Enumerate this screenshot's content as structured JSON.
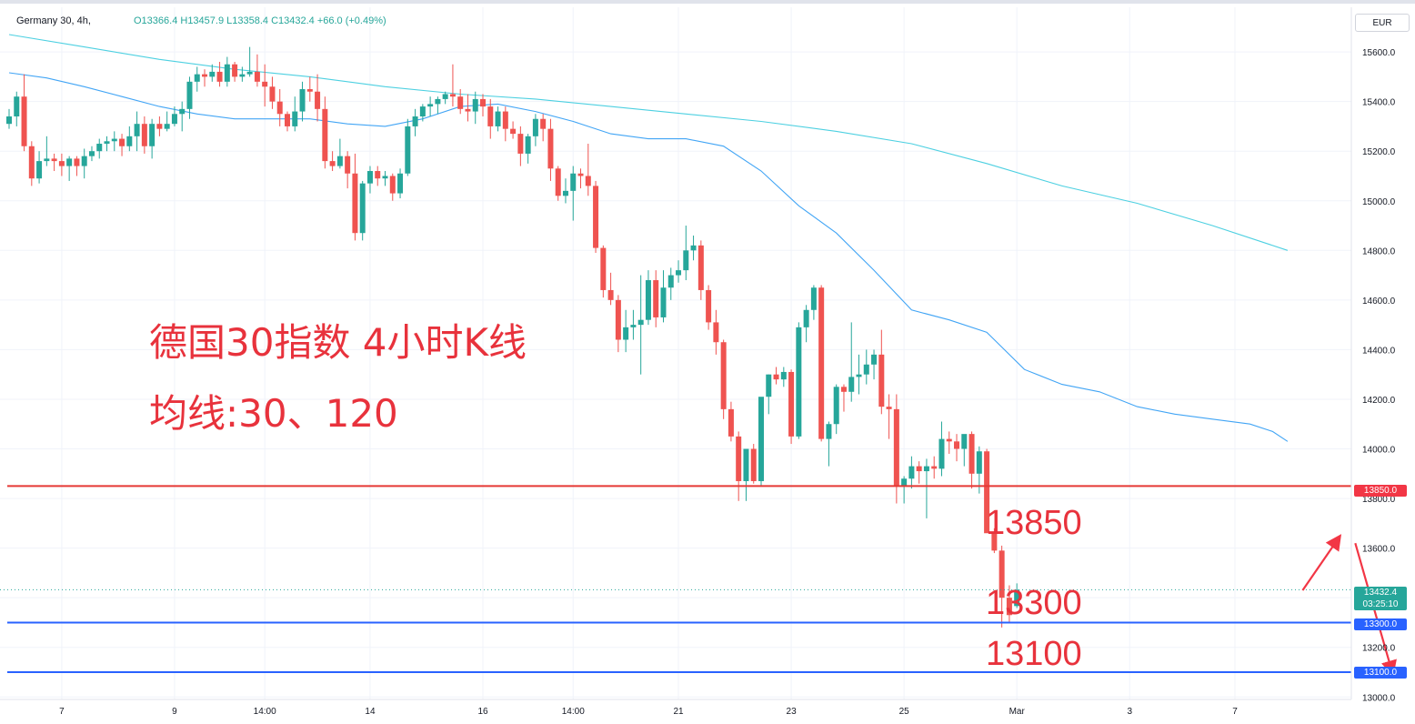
{
  "header": {
    "symbol": "Germany 30, 4h,",
    "ohlc": "O13366.4  H13457.9  L13358.4  C13432.4  +66.0 (+0.49%)"
  },
  "currency": "EUR",
  "annotations": {
    "title": "德国30指数 4小时K线",
    "ma_label": "均线:30、120",
    "level_13850": "13850",
    "level_13300": "13300",
    "level_13100": "13100"
  },
  "price_badges": {
    "res": "13850.0",
    "sup1": "13300.0",
    "sup2": "13100.0",
    "last_price": "13432.4",
    "countdown": "03:25:10"
  },
  "colors": {
    "up": "#26a69a",
    "down": "#ef5350",
    "ma30": "#42a5f5",
    "ma120": "#4dd0e1",
    "resistance": "#e53935",
    "support": "#2962ff",
    "annotation": "#e8323c"
  },
  "chart_data": {
    "type": "candlestick",
    "title": "",
    "y_axis": {
      "ticks": [
        13000,
        13200,
        13400,
        13600,
        13800,
        14000,
        14200,
        14400,
        14600,
        14800,
        15000,
        15200,
        15400,
        15600
      ],
      "tick_labels": [
        "13000.0",
        "13200.0",
        "13400.0",
        "13600.0",
        "13800.0",
        "14000.0",
        "14200.0",
        "14400.0",
        "14600.0",
        "14800.0",
        "15000.0",
        "15200.0",
        "15400.0",
        "15600.0"
      ],
      "range": [
        12990,
        15780
      ]
    },
    "x_axis": {
      "labels": [
        "7",
        "9",
        "14:00",
        "14",
        "16",
        "14:00",
        "21",
        "23",
        "25",
        "Mar",
        "3",
        "7"
      ],
      "label_bar_index": [
        7,
        22,
        34,
        48,
        63,
        75,
        89,
        104,
        119,
        134,
        149,
        163
      ]
    },
    "bars": [
      [
        15310,
        15370,
        15290,
        15340
      ],
      [
        15340,
        15440,
        15300,
        15420
      ],
      [
        15420,
        15510,
        15200,
        15220
      ],
      [
        15220,
        15240,
        15060,
        15090
      ],
      [
        15090,
        15200,
        15070,
        15160
      ],
      [
        15160,
        15260,
        15140,
        15170
      ],
      [
        15170,
        15190,
        15120,
        15160
      ],
      [
        15160,
        15190,
        15100,
        15140
      ],
      [
        15140,
        15180,
        15080,
        15170
      ],
      [
        15170,
        15180,
        15100,
        15140
      ],
      [
        15140,
        15210,
        15090,
        15180
      ],
      [
        15180,
        15220,
        15160,
        15200
      ],
      [
        15200,
        15250,
        15170,
        15230
      ],
      [
        15230,
        15260,
        15200,
        15240
      ],
      [
        15240,
        15280,
        15200,
        15250
      ],
      [
        15250,
        15270,
        15180,
        15220
      ],
      [
        15220,
        15300,
        15200,
        15260
      ],
      [
        15260,
        15360,
        15200,
        15310
      ],
      [
        15310,
        15340,
        15190,
        15220
      ],
      [
        15220,
        15330,
        15170,
        15310
      ],
      [
        15310,
        15340,
        15260,
        15290
      ],
      [
        15290,
        15360,
        15280,
        15310
      ],
      [
        15310,
        15380,
        15300,
        15350
      ],
      [
        15350,
        15400,
        15280,
        15370
      ],
      [
        15370,
        15500,
        15330,
        15480
      ],
      [
        15480,
        15540,
        15440,
        15510
      ],
      [
        15510,
        15530,
        15460,
        15500
      ],
      [
        15500,
        15550,
        15480,
        15520
      ],
      [
        15520,
        15560,
        15460,
        15480
      ],
      [
        15480,
        15580,
        15460,
        15550
      ],
      [
        15550,
        15560,
        15480,
        15500
      ],
      [
        15500,
        15540,
        15480,
        15510
      ],
      [
        15510,
        15620,
        15500,
        15520
      ],
      [
        15520,
        15590,
        15460,
        15480
      ],
      [
        15480,
        15550,
        15380,
        15460
      ],
      [
        15460,
        15500,
        15370,
        15400
      ],
      [
        15400,
        15450,
        15300,
        15350
      ],
      [
        15350,
        15360,
        15280,
        15300
      ],
      [
        15300,
        15420,
        15280,
        15360
      ],
      [
        15360,
        15480,
        15320,
        15450
      ],
      [
        15450,
        15500,
        15400,
        15440
      ],
      [
        15440,
        15510,
        15320,
        15370
      ],
      [
        15370,
        15420,
        15130,
        15160
      ],
      [
        15160,
        15200,
        15120,
        15140
      ],
      [
        15140,
        15250,
        15130,
        15180
      ],
      [
        15180,
        15200,
        15050,
        15110
      ],
      [
        15110,
        15190,
        14840,
        14870
      ],
      [
        14870,
        15080,
        14840,
        15070
      ],
      [
        15070,
        15140,
        15030,
        15120
      ],
      [
        15120,
        15140,
        15060,
        15090
      ],
      [
        15090,
        15120,
        15060,
        15100
      ],
      [
        15100,
        15110,
        15000,
        15030
      ],
      [
        15030,
        15130,
        15010,
        15110
      ],
      [
        15110,
        15330,
        15100,
        15300
      ],
      [
        15300,
        15370,
        15260,
        15340
      ],
      [
        15340,
        15390,
        15320,
        15380
      ],
      [
        15380,
        15420,
        15340,
        15390
      ],
      [
        15390,
        15420,
        15350,
        15410
      ],
      [
        15410,
        15440,
        15390,
        15430
      ],
      [
        15430,
        15550,
        15380,
        15420
      ],
      [
        15420,
        15450,
        15350,
        15370
      ],
      [
        15370,
        15430,
        15320,
        15360
      ],
      [
        15360,
        15440,
        15310,
        15410
      ],
      [
        15410,
        15430,
        15340,
        15380
      ],
      [
        15380,
        15410,
        15250,
        15300
      ],
      [
        15300,
        15380,
        15280,
        15360
      ],
      [
        15360,
        15380,
        15240,
        15290
      ],
      [
        15290,
        15320,
        15250,
        15270
      ],
      [
        15270,
        15300,
        15140,
        15190
      ],
      [
        15190,
        15270,
        15150,
        15260
      ],
      [
        15260,
        15350,
        15220,
        15330
      ],
      [
        15330,
        15350,
        15240,
        15290
      ],
      [
        15290,
        15330,
        15080,
        15130
      ],
      [
        15130,
        15140,
        15000,
        15020
      ],
      [
        15020,
        15090,
        14990,
        15040
      ],
      [
        15040,
        15140,
        14920,
        15110
      ],
      [
        15110,
        15130,
        15050,
        15100
      ],
      [
        15100,
        15230,
        15020,
        15060
      ],
      [
        15060,
        15080,
        14790,
        14810
      ],
      [
        14810,
        14820,
        14610,
        14640
      ],
      [
        14640,
        14710,
        14580,
        14600
      ],
      [
        14600,
        14620,
        14390,
        14440
      ],
      [
        14440,
        14560,
        14390,
        14490
      ],
      [
        14490,
        14560,
        14440,
        14500
      ],
      [
        14500,
        14700,
        14300,
        14520
      ],
      [
        14520,
        14720,
        14500,
        14680
      ],
      [
        14680,
        14720,
        14490,
        14530
      ],
      [
        14530,
        14720,
        14510,
        14650
      ],
      [
        14650,
        14730,
        14600,
        14700
      ],
      [
        14700,
        14760,
        14670,
        14720
      ],
      [
        14720,
        14900,
        14680,
        14800
      ],
      [
        14800,
        14860,
        14760,
        14820
      ],
      [
        14820,
        14840,
        14600,
        14640
      ],
      [
        14640,
        14660,
        14480,
        14510
      ],
      [
        14510,
        14560,
        14380,
        14430
      ],
      [
        14430,
        14440,
        14120,
        14160
      ],
      [
        14160,
        14190,
        14030,
        14050
      ],
      [
        14050,
        14070,
        13790,
        13870
      ],
      [
        13870,
        13890,
        13790,
        14000
      ],
      [
        14000,
        14020,
        13860,
        13870
      ],
      [
        13870,
        14200,
        13850,
        14210
      ],
      [
        14210,
        14300,
        14140,
        14300
      ],
      [
        14300,
        14330,
        14260,
        14280
      ],
      [
        14280,
        14330,
        14250,
        14310
      ],
      [
        14310,
        14320,
        14020,
        14050
      ],
      [
        14050,
        14510,
        14040,
        14490
      ],
      [
        14490,
        14580,
        14430,
        14560
      ],
      [
        14560,
        14660,
        14520,
        14650
      ],
      [
        14650,
        14660,
        14030,
        14040
      ],
      [
        14040,
        14110,
        13930,
        14100
      ],
      [
        14100,
        14260,
        14060,
        14250
      ],
      [
        14250,
        14260,
        14150,
        14230
      ],
      [
        14230,
        14510,
        14190,
        14290
      ],
      [
        14290,
        14380,
        14220,
        14300
      ],
      [
        14300,
        14400,
        14260,
        14340
      ],
      [
        14340,
        14400,
        14280,
        14380
      ],
      [
        14380,
        14480,
        14140,
        14170
      ],
      [
        14170,
        14220,
        14040,
        14160
      ],
      [
        14160,
        14220,
        13780,
        13850
      ],
      [
        13850,
        13890,
        13780,
        13880
      ],
      [
        13880,
        13970,
        13840,
        13930
      ],
      [
        13930,
        13950,
        13860,
        13910
      ],
      [
        13910,
        13960,
        13720,
        13930
      ],
      [
        13930,
        13970,
        13880,
        13920
      ],
      [
        13920,
        14110,
        13890,
        14040
      ],
      [
        14040,
        14070,
        13980,
        14030
      ],
      [
        14030,
        14060,
        13950,
        14000
      ],
      [
        14000,
        14040,
        13930,
        14060
      ],
      [
        14060,
        14070,
        13840,
        13900
      ],
      [
        13900,
        14010,
        13820,
        13990
      ],
      [
        13990,
        14000,
        13700,
        13660
      ],
      [
        13660,
        13680,
        13580,
        13590
      ],
      [
        13590,
        13610,
        13280,
        13400
      ],
      [
        13400,
        13450,
        13300,
        13330
      ],
      [
        13366.4,
        13457.9,
        13358.4,
        13432.4
      ]
    ],
    "ma30": [
      [
        0,
        15516
      ],
      [
        5,
        15495
      ],
      [
        10,
        15460
      ],
      [
        15,
        15420
      ],
      [
        20,
        15380
      ],
      [
        25,
        15350
      ],
      [
        30,
        15330
      ],
      [
        35,
        15330
      ],
      [
        40,
        15330
      ],
      [
        45,
        15310
      ],
      [
        50,
        15300
      ],
      [
        55,
        15330
      ],
      [
        60,
        15380
      ],
      [
        65,
        15390
      ],
      [
        70,
        15360
      ],
      [
        75,
        15320
      ],
      [
        80,
        15270
      ],
      [
        85,
        15250
      ],
      [
        90,
        15250
      ],
      [
        95,
        15220
      ],
      [
        100,
        15120
      ],
      [
        105,
        14980
      ],
      [
        110,
        14870
      ],
      [
        115,
        14720
      ],
      [
        120,
        14560
      ],
      [
        125,
        14520
      ],
      [
        130,
        14470
      ],
      [
        135,
        14320
      ],
      [
        140,
        14260
      ],
      [
        145,
        14230
      ],
      [
        150,
        14170
      ],
      [
        155,
        14140
      ],
      [
        160,
        14120
      ],
      [
        165,
        14100
      ],
      [
        168,
        14070
      ],
      [
        170,
        14030
      ]
    ],
    "ma120": [
      [
        0,
        15670
      ],
      [
        10,
        15620
      ],
      [
        20,
        15570
      ],
      [
        30,
        15530
      ],
      [
        40,
        15500
      ],
      [
        50,
        15460
      ],
      [
        60,
        15430
      ],
      [
        70,
        15410
      ],
      [
        80,
        15380
      ],
      [
        90,
        15350
      ],
      [
        100,
        15320
      ],
      [
        110,
        15280
      ],
      [
        120,
        15230
      ],
      [
        130,
        15150
      ],
      [
        140,
        15060
      ],
      [
        150,
        14990
      ],
      [
        160,
        14900
      ],
      [
        170,
        14800
      ]
    ],
    "horizontal_levels": [
      {
        "price": 13850,
        "kind": "resistance"
      },
      {
        "price": 13300,
        "kind": "support"
      },
      {
        "price": 13100,
        "kind": "support"
      }
    ],
    "arrows": [
      {
        "from": [
          172,
          13430
        ],
        "to": [
          177,
          13650
        ]
      },
      {
        "from": [
          179,
          13620
        ],
        "to": [
          184,
          13090
        ]
      }
    ]
  }
}
